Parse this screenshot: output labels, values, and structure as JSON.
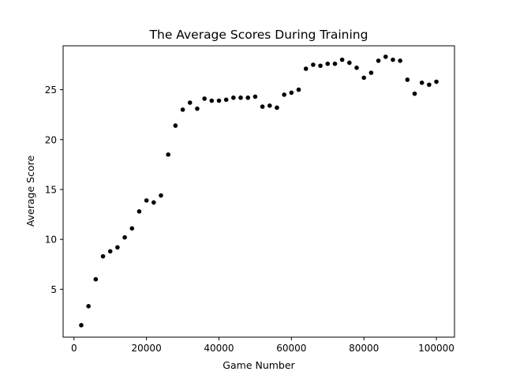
{
  "chart_data": {
    "type": "scatter",
    "title": "The Average Scores During Training",
    "xlabel": "Game Number",
    "ylabel": "Average Score",
    "xlim": [
      -3000,
      105000
    ],
    "ylim": [
      0.2,
      29.4
    ],
    "xticks": [
      0,
      20000,
      40000,
      60000,
      80000,
      100000
    ],
    "xtick_labels": [
      "0",
      "20000",
      "40000",
      "60000",
      "80000",
      "100000"
    ],
    "yticks": [
      5,
      10,
      15,
      20,
      25
    ],
    "ytick_labels": [
      "5",
      "10",
      "15",
      "20",
      "25"
    ],
    "grid": false,
    "legend": "none",
    "marker_color": "#000000",
    "series": [
      {
        "x": [
          2000,
          4000,
          6000,
          8000,
          10000,
          12000,
          14000,
          16000,
          18000,
          20000,
          22000,
          24000,
          26000,
          28000,
          30000,
          32000,
          34000,
          36000,
          38000,
          40000,
          42000,
          44000,
          46000,
          48000,
          50000,
          52000,
          54000,
          56000,
          58000,
          60000,
          62000,
          64000,
          66000,
          68000,
          70000,
          72000,
          74000,
          76000,
          78000,
          80000,
          82000,
          84000,
          86000,
          88000,
          90000,
          92000,
          94000,
          96000,
          98000,
          100000
        ],
        "y": [
          1.4,
          3.3,
          6.0,
          8.3,
          8.8,
          9.2,
          10.2,
          11.1,
          12.8,
          13.9,
          13.7,
          14.4,
          18.5,
          21.4,
          23.0,
          23.7,
          23.1,
          24.1,
          23.9,
          23.9,
          24.0,
          24.2,
          24.2,
          24.2,
          24.3,
          23.3,
          23.4,
          23.2,
          24.5,
          24.7,
          25.0,
          27.1,
          27.5,
          27.4,
          27.6,
          27.6,
          28.0,
          27.7,
          27.2,
          26.2,
          26.7,
          27.9,
          28.3,
          28.0,
          27.9,
          26.0,
          24.6,
          25.7,
          25.5,
          25.8
        ]
      }
    ]
  }
}
